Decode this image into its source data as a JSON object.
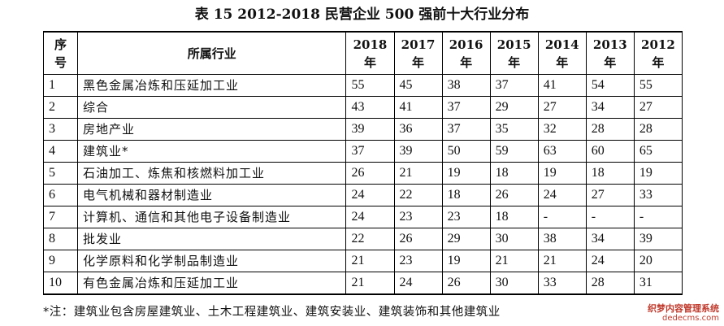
{
  "title": "表 15  2012-2018 民营企业 500 强前十大行业分布",
  "header": {
    "no": "序\n号",
    "no_top": "序",
    "no_bottom": "号",
    "industry": "所属行业",
    "years": [
      "2018",
      "2017",
      "2016",
      "2015",
      "2014",
      "2013",
      "2012"
    ],
    "year_suffix": "年"
  },
  "rows": [
    {
      "no": "1",
      "industry": "黑色金属冶炼和压延加工业",
      "values": [
        "55",
        "45",
        "38",
        "37",
        "41",
        "54",
        "55"
      ]
    },
    {
      "no": "2",
      "industry": "综合",
      "values": [
        "43",
        "41",
        "37",
        "29",
        "27",
        "34",
        "27"
      ]
    },
    {
      "no": "3",
      "industry": "房地产业",
      "values": [
        "39",
        "36",
        "37",
        "35",
        "32",
        "28",
        "28"
      ]
    },
    {
      "no": "4",
      "industry": "建筑业*",
      "values": [
        "37",
        "39",
        "50",
        "59",
        "63",
        "60",
        "65"
      ]
    },
    {
      "no": "5",
      "industry": "石油加工、炼焦和核燃料加工业",
      "values": [
        "26",
        "21",
        "19",
        "18",
        "19",
        "18",
        "19"
      ]
    },
    {
      "no": "6",
      "industry": "电气机械和器材制造业",
      "values": [
        "24",
        "22",
        "18",
        "26",
        "24",
        "27",
        "33"
      ]
    },
    {
      "no": "7",
      "industry": "计算机、通信和其他电子设备制造业",
      "values": [
        "24",
        "23",
        "23",
        "18",
        "-",
        "-",
        "-"
      ]
    },
    {
      "no": "8",
      "industry": "批发业",
      "values": [
        "22",
        "26",
        "29",
        "30",
        "38",
        "34",
        "39"
      ]
    },
    {
      "no": "9",
      "industry": "化学原料和化学制品制造业",
      "values": [
        "21",
        "23",
        "19",
        "21",
        "21",
        "24",
        "20"
      ]
    },
    {
      "no": "10",
      "industry": "有色金属冶炼和压延加工业",
      "values": [
        "21",
        "24",
        "26",
        "30",
        "33",
        "28",
        "31"
      ]
    }
  ],
  "note": "*注：建筑业包含房屋建筑业、土木工程建筑业、建筑安装业、建筑装饰和其他建筑业",
  "watermark": {
    "line1": "织梦内容管理系统",
    "line2": "dedecms.com"
  }
}
